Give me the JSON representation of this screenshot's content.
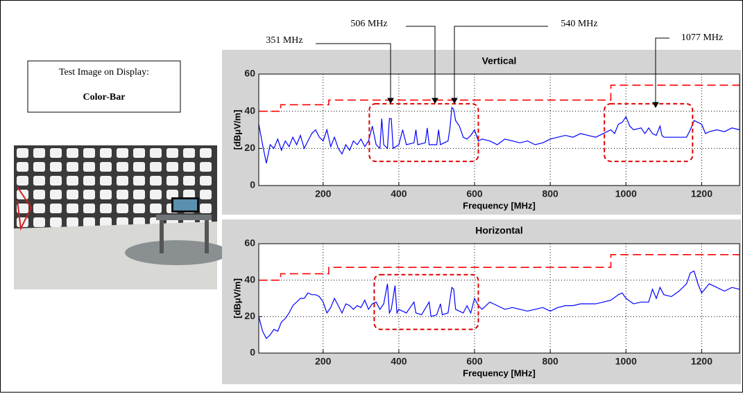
{
  "chart_data": [
    {
      "type": "line",
      "title": "Vertical",
      "xlabel": "Frequency [MHz]",
      "ylabel": "[dBμV/m]",
      "xlim": [
        30,
        1300
      ],
      "ylim": [
        0,
        60
      ],
      "xticks": [
        200,
        400,
        600,
        800,
        1000,
        1200
      ],
      "yticks": [
        0,
        20,
        40,
        60
      ],
      "grid": true,
      "series": [
        {
          "color": "#0000ff",
          "x": [
            30,
            40,
            50,
            60,
            70,
            80,
            90,
            100,
            110,
            120,
            130,
            140,
            150,
            160,
            170,
            180,
            190,
            200,
            210,
            220,
            230,
            240,
            250,
            260,
            270,
            280,
            290,
            300,
            310,
            320,
            330,
            340,
            350,
            355,
            360,
            370,
            375,
            380,
            385,
            400,
            410,
            420,
            440,
            445,
            450,
            470,
            475,
            480,
            500,
            505,
            510,
            530,
            535,
            540,
            545,
            550,
            560,
            570,
            580,
            590,
            600,
            610,
            620,
            640,
            660,
            680,
            700,
            720,
            740,
            760,
            780,
            800,
            820,
            840,
            860,
            880,
            900,
            920,
            940,
            960,
            970,
            980,
            990,
            1000,
            1010,
            1020,
            1040,
            1050,
            1060,
            1070,
            1080,
            1090,
            1095,
            1100,
            1120,
            1140,
            1160,
            1170,
            1180,
            1190,
            1200,
            1210,
            1220,
            1240,
            1260,
            1280,
            1300
          ],
          "values": [
            33,
            22,
            12,
            22,
            20,
            25,
            19,
            24,
            21,
            26,
            22,
            27,
            20,
            24,
            28,
            30,
            26,
            24,
            30,
            21,
            26,
            20,
            17,
            22,
            19,
            24,
            22,
            25,
            21,
            24,
            32,
            22,
            20,
            36,
            22,
            20,
            36,
            36,
            20,
            22,
            30,
            22,
            23,
            30,
            22,
            23,
            31,
            22,
            22,
            30,
            22,
            24,
            31,
            42,
            41,
            35,
            32,
            26,
            25,
            27,
            30,
            24,
            25,
            24,
            22,
            25,
            24,
            23,
            24,
            22,
            23,
            25,
            26,
            27,
            26,
            28,
            27,
            26,
            28,
            30,
            28,
            33,
            34,
            37,
            32,
            30,
            31,
            28,
            31,
            28,
            27,
            32,
            27,
            26,
            26,
            26,
            26,
            30,
            35,
            34,
            33,
            28,
            29,
            30,
            29,
            31,
            30
          ]
        },
        {
          "color": "#ff0000",
          "line_style": "dashed",
          "x": [
            30,
            88,
            88,
            215,
            215,
            960,
            960,
            1300
          ],
          "values": [
            40,
            40,
            43.5,
            43.5,
            46,
            46,
            54,
            54
          ]
        }
      ],
      "highlight_regions": [
        {
          "xlim": [
            322,
            610
          ],
          "ylim": [
            13,
            44
          ]
        },
        {
          "xlim": [
            943,
            1176
          ],
          "ylim": [
            13,
            44
          ]
        }
      ]
    },
    {
      "type": "line",
      "title": "Horizontal",
      "xlabel": "Frequency [MHz]",
      "ylabel": "[dBμV/m]",
      "xlim": [
        30,
        1300
      ],
      "ylim": [
        0,
        60
      ],
      "xticks": [
        200,
        400,
        600,
        800,
        1000,
        1200
      ],
      "yticks": [
        0,
        20,
        40,
        60
      ],
      "grid": true,
      "series": [
        {
          "color": "#0000ff",
          "x": [
            30,
            40,
            50,
            60,
            70,
            80,
            90,
            100,
            110,
            120,
            130,
            140,
            150,
            160,
            170,
            180,
            190,
            200,
            210,
            220,
            230,
            240,
            250,
            260,
            270,
            280,
            290,
            300,
            310,
            320,
            330,
            340,
            350,
            360,
            370,
            375,
            380,
            390,
            395,
            400,
            420,
            440,
            445,
            460,
            480,
            485,
            500,
            510,
            515,
            530,
            540,
            545,
            550,
            570,
            580,
            590,
            600,
            610,
            620,
            640,
            660,
            680,
            700,
            720,
            740,
            760,
            780,
            800,
            820,
            840,
            860,
            880,
            900,
            920,
            940,
            960,
            980,
            990,
            1000,
            1020,
            1040,
            1060,
            1070,
            1080,
            1090,
            1100,
            1120,
            1140,
            1160,
            1170,
            1180,
            1190,
            1200,
            1220,
            1240,
            1260,
            1280,
            1300
          ],
          "values": [
            20,
            12,
            8,
            10,
            13,
            12,
            17,
            19,
            22,
            26,
            28,
            30,
            30,
            33,
            32,
            32,
            31,
            28,
            22,
            25,
            30,
            26,
            22,
            27,
            26,
            24,
            26,
            25,
            29,
            24,
            27,
            28,
            24,
            27,
            38,
            22,
            24,
            37,
            22,
            24,
            22,
            28,
            22,
            21,
            28,
            20,
            21,
            27,
            21,
            22,
            36,
            35,
            24,
            22,
            26,
            22,
            30,
            26,
            24,
            28,
            26,
            24,
            25,
            24,
            23,
            24,
            25,
            23,
            25,
            26,
            26,
            27,
            27,
            27,
            28,
            29,
            32,
            33,
            30,
            27,
            28,
            28,
            35,
            30,
            36,
            32,
            31,
            34,
            38,
            44,
            45,
            38,
            33,
            38,
            36,
            34,
            36,
            35
          ]
        },
        {
          "color": "#ff0000",
          "line_style": "dashed",
          "x": [
            30,
            88,
            88,
            215,
            215,
            960,
            960,
            1300
          ],
          "values": [
            40,
            40,
            43.5,
            43.5,
            47,
            47,
            54,
            54
          ]
        }
      ],
      "highlight_regions": [
        {
          "xlim": [
            335,
            610
          ],
          "ylim": [
            13,
            43
          ]
        }
      ]
    }
  ],
  "annotations": [
    "351 MHz",
    "506 MHz",
    "540 MHz",
    "1077 MHz"
  ],
  "caption_box": {
    "line1": "Test Image on Display:",
    "line2": "Color-Bar"
  }
}
